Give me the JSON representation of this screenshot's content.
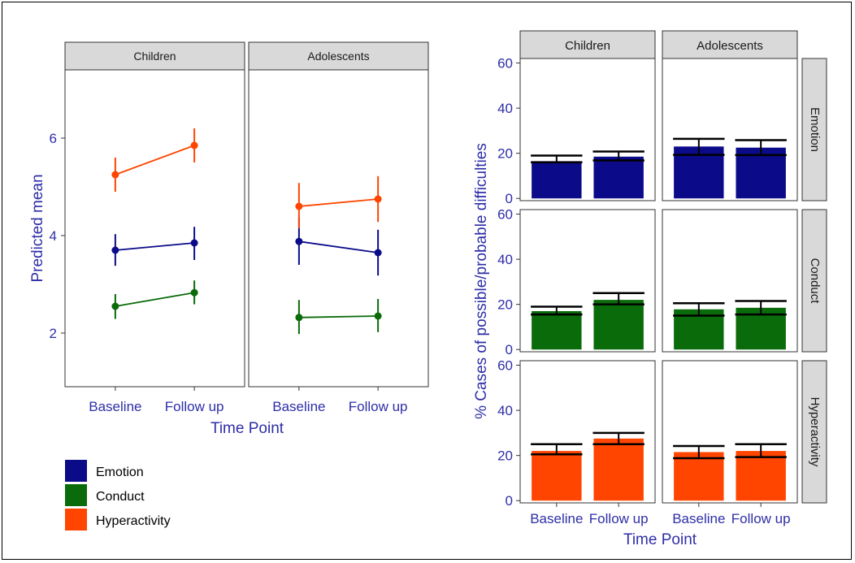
{
  "colors": {
    "Emotion": "#0b0b8a",
    "Conduct": "#0a6b0a",
    "Hyperactivity": "#ff4500",
    "axis_text": "#2e2ea8",
    "strip_fill": "#d9d9d9"
  },
  "legend": {
    "items": [
      "Emotion",
      "Conduct",
      "Hyperactivity"
    ],
    "placement": "bottom-left"
  },
  "chart_data": [
    {
      "type": "line",
      "facets": [
        "Children",
        "Adolescents"
      ],
      "categories": [
        "Baseline",
        "Follow up"
      ],
      "xlabel": "Time Point",
      "ylabel": "Predicted mean",
      "ylim": [
        0.9,
        7.4
      ],
      "yticks": [
        2,
        4,
        6
      ],
      "grid": false,
      "series": [
        {
          "name": "Emotion",
          "panels": [
            {
              "facet": "Children",
              "mean": [
                3.7,
                3.85
              ],
              "lower": [
                3.38,
                3.5
              ],
              "upper": [
                4.03,
                4.18
              ]
            },
            {
              "facet": "Adolescents",
              "mean": [
                3.88,
                3.65
              ],
              "lower": [
                3.4,
                3.18
              ],
              "upper": [
                4.38,
                4.12
              ]
            }
          ]
        },
        {
          "name": "Conduct",
          "panels": [
            {
              "facet": "Children",
              "mean": [
                2.55,
                2.83
              ],
              "lower": [
                2.29,
                2.59
              ],
              "upper": [
                2.8,
                3.08
              ]
            },
            {
              "facet": "Adolescents",
              "mean": [
                2.32,
                2.35
              ],
              "lower": [
                1.98,
                2.02
              ],
              "upper": [
                2.68,
                2.7
              ]
            }
          ]
        },
        {
          "name": "Hyperactivity",
          "panels": [
            {
              "facet": "Children",
              "mean": [
                5.25,
                5.85
              ],
              "lower": [
                4.9,
                5.5
              ],
              "upper": [
                5.6,
                6.2
              ]
            },
            {
              "facet": "Adolescents",
              "mean": [
                4.6,
                4.75
              ],
              "lower": [
                4.15,
                4.28
              ],
              "upper": [
                5.08,
                5.22
              ]
            }
          ]
        }
      ]
    },
    {
      "type": "bar",
      "col_facets": [
        "Children",
        "Adolescents"
      ],
      "row_facets": [
        "Emotion",
        "Conduct",
        "Hyperactivity"
      ],
      "categories": [
        "Baseline",
        "Follow up"
      ],
      "xlabel": "Time Point",
      "ylabel": "% Cases of possible/probable difficulties",
      "ylim": [
        -1,
        62
      ],
      "yticks": [
        0,
        20,
        40,
        60
      ],
      "grid": false,
      "panels": [
        {
          "row": "Emotion",
          "col": "Children",
          "values": [
            16.5,
            18.5
          ],
          "lower": [
            16,
            16.8
          ],
          "upper": [
            19,
            20.8
          ]
        },
        {
          "row": "Emotion",
          "col": "Adolescents",
          "values": [
            23,
            22.5
          ],
          "lower": [
            19.3,
            19.2
          ],
          "upper": [
            26.4,
            25.8
          ]
        },
        {
          "row": "Conduct",
          "col": "Children",
          "values": [
            17,
            22
          ],
          "lower": [
            15.5,
            20
          ],
          "upper": [
            19,
            25
          ]
        },
        {
          "row": "Conduct",
          "col": "Adolescents",
          "values": [
            17.8,
            18.5
          ],
          "lower": [
            15,
            15.5
          ],
          "upper": [
            20.5,
            21.5
          ]
        },
        {
          "row": "Hyperactivity",
          "col": "Children",
          "values": [
            22,
            27.5
          ],
          "lower": [
            20.5,
            25
          ],
          "upper": [
            25,
            30
          ]
        },
        {
          "row": "Hyperactivity",
          "col": "Adolescents",
          "values": [
            21.5,
            22
          ],
          "lower": [
            18.8,
            19.3
          ],
          "upper": [
            24.2,
            25
          ]
        }
      ]
    }
  ]
}
